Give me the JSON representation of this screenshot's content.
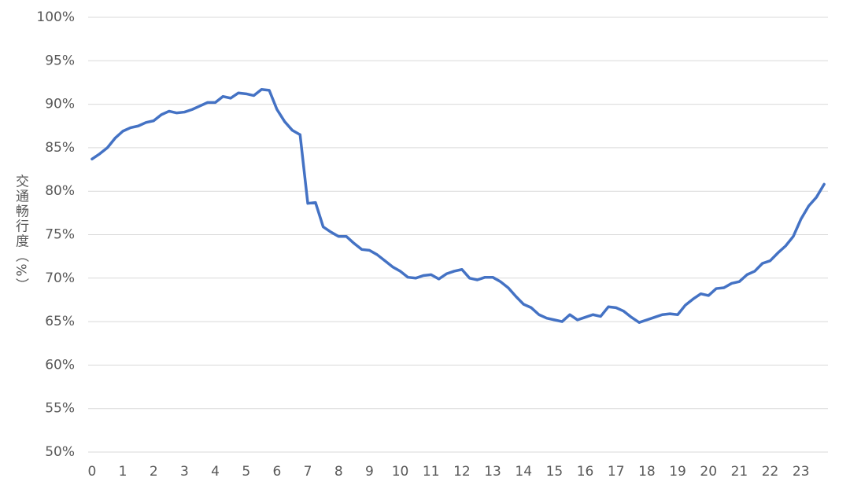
{
  "chart_data": {
    "type": "line",
    "y_label": "交通畅行度（%）",
    "x": [
      0,
      0.25,
      0.5,
      0.75,
      1,
      1.25,
      1.5,
      1.75,
      2,
      2.25,
      2.5,
      2.75,
      3,
      3.25,
      3.5,
      3.75,
      4,
      4.25,
      4.5,
      4.75,
      5,
      5.25,
      5.5,
      5.75,
      6,
      6.25,
      6.5,
      6.75,
      7,
      7.25,
      7.5,
      7.75,
      8,
      8.25,
      8.5,
      8.75,
      9,
      9.25,
      9.5,
      9.75,
      10,
      10.25,
      10.5,
      10.75,
      11,
      11.25,
      11.5,
      11.75,
      12,
      12.25,
      12.5,
      12.75,
      13,
      13.25,
      13.5,
      13.75,
      14,
      14.25,
      14.5,
      14.75,
      15,
      15.25,
      15.5,
      15.75,
      16,
      16.25,
      16.5,
      16.75,
      17,
      17.25,
      17.5,
      17.75,
      18,
      18.25,
      18.5,
      18.75,
      19,
      19.25,
      19.5,
      19.75,
      20,
      20.25,
      20.5,
      20.75,
      21,
      21.25,
      21.5,
      21.75,
      22,
      22.25,
      22.5,
      22.75,
      23,
      23.25,
      23.5,
      23.75
    ],
    "series": [
      {
        "color": "#4472c4",
        "values": [
          83.7,
          84.3,
          85.0,
          86.1,
          86.9,
          87.3,
          87.5,
          87.9,
          88.1,
          88.8,
          89.2,
          89.0,
          89.1,
          89.4,
          89.8,
          90.2,
          90.2,
          90.9,
          90.7,
          91.3,
          91.2,
          91.0,
          91.7,
          91.6,
          89.4,
          88.0,
          87.0,
          86.5,
          78.6,
          78.7,
          75.9,
          75.3,
          74.8,
          74.8,
          74.0,
          73.3,
          73.2,
          72.7,
          72.0,
          71.3,
          70.8,
          70.1,
          70.0,
          70.3,
          70.4,
          69.9,
          70.5,
          70.8,
          71.0,
          70.0,
          69.8,
          70.1,
          70.1,
          69.6,
          68.9,
          67.9,
          67.0,
          66.6,
          65.8,
          65.4,
          65.2,
          65.0,
          65.8,
          65.2,
          65.5,
          65.8,
          65.6,
          66.7,
          66.6,
          66.2,
          65.5,
          64.9,
          65.2,
          65.5,
          65.8,
          65.9,
          65.8,
          66.9,
          67.6,
          68.2,
          68.0,
          68.8,
          68.9,
          69.4,
          69.6,
          70.4,
          70.8,
          71.7,
          72.0,
          72.9,
          73.7,
          74.8,
          76.8,
          78.3,
          79.3,
          80.8
        ]
      }
    ],
    "xlim": [
      -0.125,
      23.875
    ],
    "xticks": [
      0,
      1,
      2,
      3,
      4,
      5,
      6,
      7,
      8,
      9,
      10,
      11,
      12,
      13,
      14,
      15,
      16,
      17,
      18,
      19,
      20,
      21,
      22,
      23
    ],
    "ylim": [
      50,
      100
    ],
    "yticks": [
      {
        "value": 50,
        "label": "50%"
      },
      {
        "value": 55,
        "label": "55%"
      },
      {
        "value": 60,
        "label": "60%"
      },
      {
        "value": 65,
        "label": "65%"
      },
      {
        "value": 70,
        "label": "70%"
      },
      {
        "value": 75,
        "label": "75%"
      },
      {
        "value": 80,
        "label": "80%"
      },
      {
        "value": 85,
        "label": "85%"
      },
      {
        "value": 90,
        "label": "90%"
      },
      {
        "value": 95,
        "label": "95%"
      },
      {
        "value": 100,
        "label": "100%"
      }
    ],
    "grid": true
  }
}
